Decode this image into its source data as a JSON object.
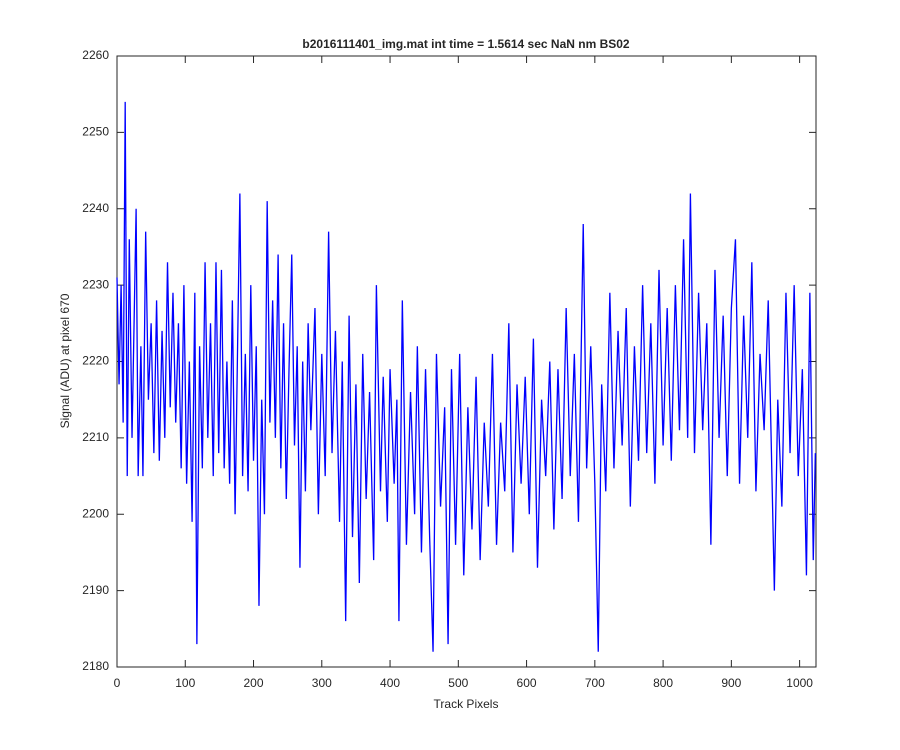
{
  "chart_data": {
    "type": "line",
    "title": "b2016111401_img.mat int time = 1.5614 sec  NaN nm BS02",
    "xlabel": "Track Pixels",
    "ylabel": "Signal (ADU) at pixel 670",
    "xlim": [
      0,
      1024
    ],
    "xticks": [
      0,
      100,
      200,
      300,
      400,
      500,
      600,
      700,
      800,
      900,
      1000
    ],
    "ylim": [
      2180,
      2260
    ],
    "yticks": [
      2180,
      2190,
      2200,
      2210,
      2220,
      2230,
      2240,
      2250,
      2260
    ],
    "series": [
      {
        "color": "#0000ff",
        "x": [
          0,
          3,
          6,
          9,
          12,
          15,
          18,
          22,
          25,
          28,
          31,
          35,
          38,
          42,
          46,
          50,
          54,
          58,
          62,
          66,
          70,
          74,
          78,
          82,
          86,
          90,
          94,
          98,
          102,
          106,
          110,
          114,
          117,
          121,
          125,
          129,
          133,
          137,
          141,
          145,
          149,
          153,
          157,
          161,
          165,
          169,
          173,
          177,
          180,
          184,
          188,
          192,
          196,
          200,
          204,
          208,
          212,
          216,
          220,
          224,
          228,
          232,
          236,
          240,
          244,
          248,
          252,
          256,
          260,
          264,
          268,
          272,
          276,
          280,
          284,
          290,
          295,
          300,
          305,
          310,
          315,
          320,
          326,
          330,
          335,
          340,
          345,
          350,
          355,
          360,
          365,
          370,
          376,
          380,
          386,
          390,
          396,
          400,
          406,
          410,
          413,
          418,
          424,
          430,
          436,
          440,
          446,
          452,
          458,
          463,
          468,
          474,
          480,
          485,
          490,
          496,
          502,
          508,
          514,
          520,
          526,
          532,
          538,
          544,
          550,
          556,
          562,
          568,
          574,
          580,
          586,
          592,
          598,
          604,
          610,
          616,
          622,
          628,
          634,
          640,
          646,
          652,
          658,
          664,
          670,
          676,
          683,
          688,
          694,
          700,
          705,
          710,
          716,
          722,
          728,
          734,
          740,
          746,
          752,
          758,
          764,
          770,
          776,
          782,
          788,
          794,
          800,
          806,
          812,
          818,
          824,
          830,
          836,
          840,
          846,
          852,
          858,
          864,
          870,
          876,
          882,
          888,
          894,
          900,
          906,
          912,
          918,
          924,
          930,
          936,
          942,
          948,
          954,
          963,
          968,
          974,
          980,
          986,
          992,
          998,
          1004,
          1010,
          1015,
          1020,
          1023
        ],
        "values": [
          2231,
          2217,
          2230,
          2212,
          2254,
          2205,
          2236,
          2210,
          2225,
          2240,
          2205,
          2222,
          2205,
          2237,
          2215,
          2225,
          2208,
          2228,
          2207,
          2224,
          2210,
          2233,
          2214,
          2229,
          2212,
          2225,
          2206,
          2230,
          2204,
          2220,
          2199,
          2229,
          2183,
          2222,
          2206,
          2233,
          2210,
          2225,
          2205,
          2233,
          2208,
          2232,
          2206,
          2220,
          2204,
          2228,
          2200,
          2224,
          2242,
          2205,
          2221,
          2203,
          2230,
          2207,
          2222,
          2188,
          2215,
          2200,
          2241,
          2212,
          2228,
          2210,
          2234,
          2206,
          2225,
          2202,
          2219,
          2234,
          2209,
          2222,
          2193,
          2220,
          2203,
          2225,
          2211,
          2227,
          2200,
          2221,
          2205,
          2237,
          2208,
          2224,
          2199,
          2220,
          2186,
          2226,
          2197,
          2217,
          2191,
          2221,
          2202,
          2216,
          2194,
          2230,
          2203,
          2218,
          2199,
          2219,
          2204,
          2215,
          2186,
          2228,
          2196,
          2216,
          2200,
          2222,
          2195,
          2219,
          2197,
          2182,
          2221,
          2201,
          2214,
          2183,
          2219,
          2196,
          2221,
          2192,
          2214,
          2198,
          2218,
          2194,
          2212,
          2201,
          2221,
          2196,
          2212,
          2203,
          2225,
          2195,
          2217,
          2204,
          2218,
          2200,
          2223,
          2193,
          2215,
          2205,
          2220,
          2198,
          2219,
          2202,
          2227,
          2205,
          2221,
          2199,
          2238,
          2206,
          2222,
          2204,
          2182,
          2217,
          2203,
          2229,
          2206,
          2224,
          2209,
          2227,
          2201,
          2222,
          2207,
          2230,
          2208,
          2225,
          2204,
          2232,
          2209,
          2227,
          2207,
          2230,
          2211,
          2236,
          2210,
          2242,
          2208,
          2229,
          2211,
          2225,
          2196,
          2232,
          2210,
          2226,
          2205,
          2227,
          2236,
          2204,
          2226,
          2210,
          2233,
          2203,
          2221,
          2211,
          2228,
          2190,
          2215,
          2201,
          2229,
          2208,
          2230,
          2205,
          2219,
          2192,
          2229,
          2194,
          2208
        ]
      }
    ]
  }
}
